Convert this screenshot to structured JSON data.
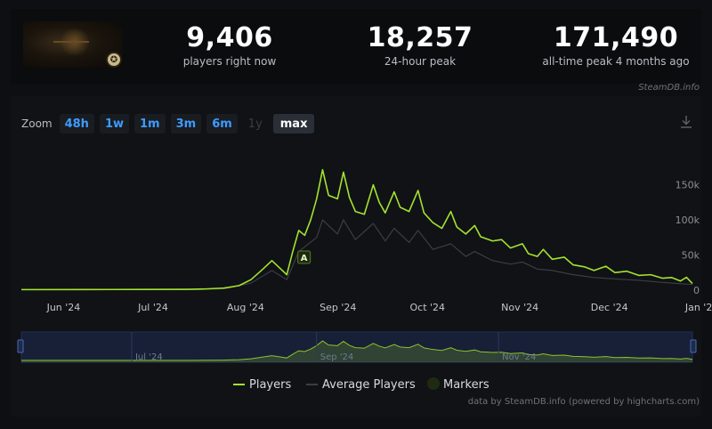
{
  "header": {
    "thumbnail_icon": "game-thumbnail",
    "badge_glyph": "✪",
    "stats": [
      {
        "value": "9,406",
        "label": "players right now"
      },
      {
        "value": "18,257",
        "label": "24-hour peak"
      },
      {
        "value": "171,490",
        "label": "all-time peak 4 months ago"
      }
    ],
    "brand_tag": "SteamDB.info"
  },
  "zoom": {
    "label": "Zoom",
    "options": [
      {
        "label": "48h",
        "state": "normal"
      },
      {
        "label": "1w",
        "state": "normal"
      },
      {
        "label": "1m",
        "state": "normal"
      },
      {
        "label": "3m",
        "state": "normal"
      },
      {
        "label": "6m",
        "state": "normal"
      },
      {
        "label": "1y",
        "state": "disabled"
      },
      {
        "label": "max",
        "state": "active"
      }
    ],
    "download_icon": "download-icon"
  },
  "chart_data": {
    "type": "line",
    "title": "",
    "xlabel": "",
    "ylabel": "",
    "ylim": [
      0,
      185000
    ],
    "xlim": [
      "2024-05-25",
      "2025-01-05"
    ],
    "y_ticks": [
      0,
      50000,
      100000,
      150000
    ],
    "y_tick_labels": [
      "0",
      "50k",
      "100k",
      "150k"
    ],
    "x_ticks": [
      {
        "date": "2024-06-01",
        "label": "Jun '24"
      },
      {
        "date": "2024-07-01",
        "label": "Jul '24"
      },
      {
        "date": "2024-08-01",
        "label": "Aug '24"
      },
      {
        "date": "2024-09-01",
        "label": "Sep '24"
      },
      {
        "date": "2024-10-01",
        "label": "Oct '24"
      },
      {
        "date": "2024-11-01",
        "label": "Nov '24"
      },
      {
        "date": "2024-12-01",
        "label": "Dec '24"
      },
      {
        "date": "2025-01-01",
        "label": "Jan '25"
      }
    ],
    "navigator_labels": [
      {
        "date": "2024-07-01",
        "label": "Jul '24"
      },
      {
        "date": "2024-09-01",
        "label": "Sep '24"
      },
      {
        "date": "2024-11-01",
        "label": "Nov '24"
      }
    ],
    "series": [
      {
        "name": "Players",
        "color": "#a4e22e",
        "points": [
          [
            "2024-05-25",
            800
          ],
          [
            "2024-06-15",
            900
          ],
          [
            "2024-07-05",
            1000
          ],
          [
            "2024-07-20",
            1200
          ],
          [
            "2024-07-25",
            1600
          ],
          [
            "2024-08-01",
            3000
          ],
          [
            "2024-08-06",
            6500
          ],
          [
            "2024-08-10",
            15000
          ],
          [
            "2024-08-14",
            30000
          ],
          [
            "2024-08-17",
            42000
          ],
          [
            "2024-08-20",
            30000
          ],
          [
            "2024-08-22",
            22000
          ],
          [
            "2024-08-24",
            55000
          ],
          [
            "2024-08-26",
            85000
          ],
          [
            "2024-08-28",
            78000
          ],
          [
            "2024-08-30",
            100000
          ],
          [
            "2024-09-01",
            130000
          ],
          [
            "2024-09-03",
            171490
          ],
          [
            "2024-09-05",
            135000
          ],
          [
            "2024-09-08",
            130000
          ],
          [
            "2024-09-10",
            168000
          ],
          [
            "2024-09-12",
            132000
          ],
          [
            "2024-09-14",
            112000
          ],
          [
            "2024-09-17",
            108000
          ],
          [
            "2024-09-20",
            150000
          ],
          [
            "2024-09-22",
            125000
          ],
          [
            "2024-09-24",
            110000
          ],
          [
            "2024-09-27",
            140000
          ],
          [
            "2024-09-29",
            118000
          ],
          [
            "2024-10-02",
            112000
          ],
          [
            "2024-10-05",
            142000
          ],
          [
            "2024-10-07",
            110000
          ],
          [
            "2024-10-10",
            96000
          ],
          [
            "2024-10-13",
            88000
          ],
          [
            "2024-10-16",
            112000
          ],
          [
            "2024-10-18",
            90000
          ],
          [
            "2024-10-21",
            80000
          ],
          [
            "2024-10-24",
            92000
          ],
          [
            "2024-10-26",
            76000
          ],
          [
            "2024-10-30",
            70000
          ],
          [
            "2024-11-02",
            72000
          ],
          [
            "2024-11-05",
            60000
          ],
          [
            "2024-11-09",
            66000
          ],
          [
            "2024-11-11",
            52000
          ],
          [
            "2024-11-14",
            48000
          ],
          [
            "2024-11-16",
            58000
          ],
          [
            "2024-11-19",
            44000
          ],
          [
            "2024-11-23",
            47000
          ],
          [
            "2024-11-26",
            36000
          ],
          [
            "2024-11-30",
            33000
          ],
          [
            "2024-12-03",
            28000
          ],
          [
            "2024-12-07",
            34000
          ],
          [
            "2024-12-10",
            25000
          ],
          [
            "2024-12-14",
            27000
          ],
          [
            "2024-12-18",
            21000
          ],
          [
            "2024-12-22",
            22000
          ],
          [
            "2024-12-26",
            17000
          ],
          [
            "2024-12-29",
            18000
          ],
          [
            "2025-01-01",
            13000
          ],
          [
            "2025-01-03",
            18257
          ],
          [
            "2025-01-05",
            9406
          ]
        ]
      },
      {
        "name": "Average Players",
        "color": "#3a3e44",
        "points": [
          [
            "2024-05-25",
            600
          ],
          [
            "2024-07-20",
            800
          ],
          [
            "2024-08-01",
            2000
          ],
          [
            "2024-08-10",
            10000
          ],
          [
            "2024-08-17",
            28000
          ],
          [
            "2024-08-22",
            15000
          ],
          [
            "2024-08-26",
            55000
          ],
          [
            "2024-09-01",
            75000
          ],
          [
            "2024-09-03",
            100000
          ],
          [
            "2024-09-08",
            80000
          ],
          [
            "2024-09-10",
            100000
          ],
          [
            "2024-09-14",
            72000
          ],
          [
            "2024-09-20",
            95000
          ],
          [
            "2024-09-24",
            70000
          ],
          [
            "2024-09-27",
            88000
          ],
          [
            "2024-10-02",
            68000
          ],
          [
            "2024-10-05",
            85000
          ],
          [
            "2024-10-10",
            58000
          ],
          [
            "2024-10-16",
            66000
          ],
          [
            "2024-10-21",
            48000
          ],
          [
            "2024-10-24",
            55000
          ],
          [
            "2024-10-30",
            42000
          ],
          [
            "2024-11-05",
            37000
          ],
          [
            "2024-11-09",
            40000
          ],
          [
            "2024-11-14",
            30000
          ],
          [
            "2024-11-19",
            28000
          ],
          [
            "2024-11-26",
            22000
          ],
          [
            "2024-12-03",
            18000
          ],
          [
            "2024-12-10",
            16000
          ],
          [
            "2024-12-18",
            14000
          ],
          [
            "2024-12-26",
            11000
          ],
          [
            "2025-01-05",
            8000
          ]
        ]
      }
    ],
    "markers": [
      {
        "date": "2024-08-26",
        "label": "A"
      }
    ],
    "legend": {
      "position": "bottom-center",
      "items": [
        {
          "name": "Players",
          "symbol": "line"
        },
        {
          "name": "Average Players",
          "symbol": "line"
        },
        {
          "name": "Markers",
          "symbol": "dot"
        }
      ]
    },
    "grid": false
  },
  "credits": "data by SteamDB.info (powered by highcharts.com)"
}
